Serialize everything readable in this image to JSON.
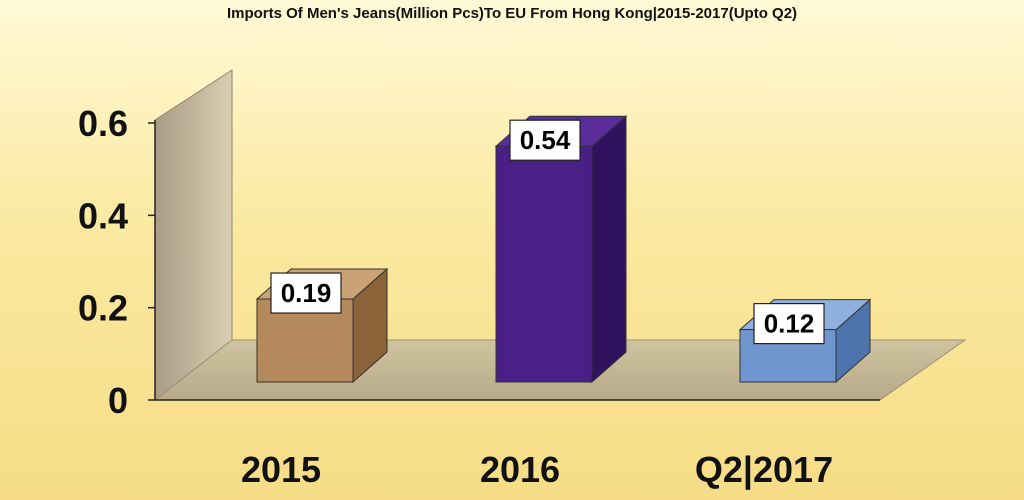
{
  "chart_data": {
    "type": "bar",
    "title": "Imports Of Men's Jeans(Million Pcs)To EU From Hong Kong|2015-2017(Upto Q2)",
    "categories": [
      "2015",
      "2016",
      "Q2|2017"
    ],
    "values": [
      0.19,
      0.54,
      0.12
    ],
    "data_labels": [
      "0.19",
      "0.54",
      "0.12"
    ],
    "y_ticks": [
      "0",
      "0.2",
      "0.4",
      "0.6"
    ],
    "ylim": [
      0,
      0.6
    ],
    "grid": false,
    "legend": "none",
    "style": "3d-column",
    "bar_colors": [
      "#b48a5c",
      "#4a1f86",
      "#6f96cf"
    ],
    "bar_side_colors": [
      "#8a6338",
      "#31125e",
      "#4e73ad"
    ],
    "bar_top_colors": [
      "#c9a276",
      "#5a2c9c",
      "#8fb0de"
    ]
  }
}
